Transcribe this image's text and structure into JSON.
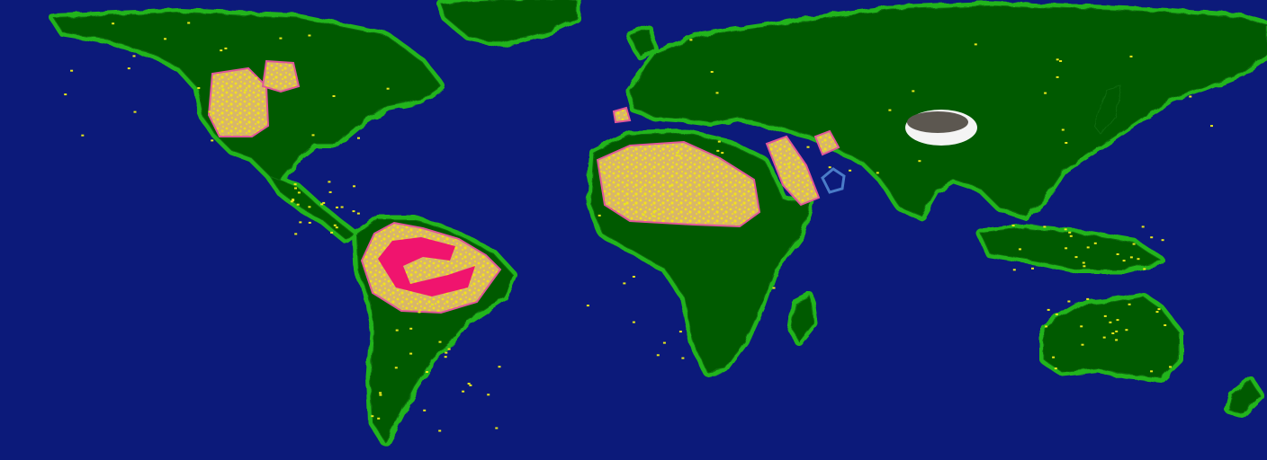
{
  "map": {
    "projection": "equirectangular",
    "colors": {
      "ocean": "#0c1a7a",
      "coast_light": "#22b41e",
      "land_forest": "#065a06",
      "land_dark": "#0a6a0a",
      "desert": "#d8b66a",
      "desert_speckle": "#f2e21c",
      "desert_outline": "#e0569a",
      "magenta_region": "#f0146e",
      "plateau_gray": "#5c5750",
      "plateau_white": "#f4f4f4",
      "blue_feature": "#4a7cc8",
      "yellow_dots": "#e8e81a"
    },
    "regions": [
      {
        "name": "north-america",
        "type": "continent"
      },
      {
        "name": "greenland",
        "type": "continent"
      },
      {
        "name": "central-america",
        "type": "continent"
      },
      {
        "name": "south-america",
        "type": "continent"
      },
      {
        "name": "europe-asia",
        "type": "continent"
      },
      {
        "name": "africa",
        "type": "continent"
      },
      {
        "name": "madagascar",
        "type": "island"
      },
      {
        "name": "australia",
        "type": "continent"
      },
      {
        "name": "new-zealand",
        "type": "island"
      },
      {
        "name": "british-isles",
        "type": "island"
      },
      {
        "name": "japan",
        "type": "island"
      },
      {
        "name": "indonesia",
        "type": "island"
      },
      {
        "name": "western-us-desert",
        "type": "desert"
      },
      {
        "name": "rocky-desert",
        "type": "desert"
      },
      {
        "name": "sahara",
        "type": "desert"
      },
      {
        "name": "arabian-desert",
        "type": "desert"
      },
      {
        "name": "iranian-desert",
        "type": "desert"
      },
      {
        "name": "iberian-desert",
        "type": "desert"
      },
      {
        "name": "amazon-desert-ring",
        "type": "desert"
      },
      {
        "name": "amazon-magenta",
        "type": "special"
      },
      {
        "name": "tibet-plateau",
        "type": "plateau"
      },
      {
        "name": "persian-gulf-blue",
        "type": "special"
      }
    ]
  }
}
